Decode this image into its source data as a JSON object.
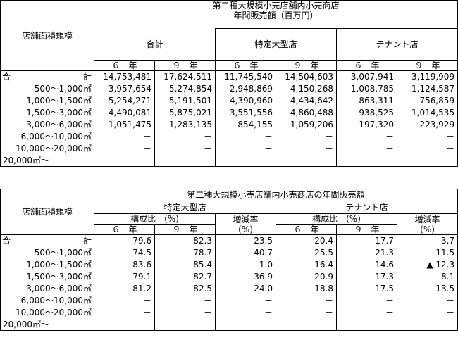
{
  "table1": {
    "stub_header": "店舗面積規模",
    "title": "第二種大規模小売店舗内小売商店",
    "subtitle": "年間販売額（百万円）",
    "groups": [
      "合計",
      "特定大型店",
      "テナント店"
    ],
    "years": [
      "６　年",
      "９　年"
    ],
    "rows": [
      {
        "label": "合計",
        "values": [
          "14,753,481",
          "17,624,511",
          "11,745,540",
          "14,504,603",
          "3,007,941",
          "3,119,909"
        ]
      },
      {
        "label": "500～1,000㎡",
        "values": [
          "3,957,654",
          "5,274,854",
          "2,948,869",
          "4,150,268",
          "1,008,785",
          "1,124,587"
        ]
      },
      {
        "label": "1,000～1,500㎡",
        "values": [
          "5,254,271",
          "5,191,501",
          "4,390,960",
          "4,434,642",
          "863,311",
          "756,859"
        ]
      },
      {
        "label": "1,500～3,000㎡",
        "values": [
          "4,490,081",
          "5,875,021",
          "3,551,556",
          "4,860,488",
          "938,525",
          "1,014,535"
        ]
      },
      {
        "label": "3,000～6,000㎡",
        "values": [
          "1,051,475",
          "1,283,135",
          "854,155",
          "1,059,206",
          "197,320",
          "223,929"
        ]
      },
      {
        "label": "6,000～10,000㎡",
        "values": [
          "－",
          "－",
          "－",
          "－",
          "－",
          "－"
        ]
      },
      {
        "label": "10,000～20,000㎡",
        "values": [
          "－",
          "－",
          "－",
          "－",
          "－",
          "－"
        ]
      },
      {
        "label": "20,000㎡～",
        "values": [
          "－",
          "－",
          "－",
          "－",
          "－",
          "－"
        ]
      }
    ]
  },
  "table2": {
    "stub_header": "店舗面積規模",
    "title": "第二種大規模小売店舗内小売商店の年間販売額",
    "groups": [
      "特定大型店",
      "テナント店"
    ],
    "share": "構成比　(%)",
    "change": "増減率",
    "change_unit": "(%)",
    "years": [
      "６　年",
      "９　年"
    ],
    "rows": [
      {
        "label": "合計",
        "values": [
          "79.6",
          "82.3",
          "23.5",
          "20.4",
          "17.7",
          "3.7"
        ]
      },
      {
        "label": "500～1,000㎡",
        "values": [
          "74.5",
          "78.7",
          "40.7",
          "25.5",
          "21.3",
          "11.5"
        ]
      },
      {
        "label": "1,000～1,500㎡",
        "values": [
          "83.6",
          "85.4",
          "1.0",
          "16.4",
          "14.6",
          "▲ 12.3"
        ]
      },
      {
        "label": "1,500～3,000㎡",
        "values": [
          "79.1",
          "82.7",
          "36.9",
          "20.9",
          "17.3",
          "8.1"
        ]
      },
      {
        "label": "3,000～6,000㎡",
        "values": [
          "81.2",
          "82.5",
          "24.0",
          "18.8",
          "17.5",
          "13.5"
        ]
      },
      {
        "label": "6,000～10,000㎡",
        "values": [
          "－",
          "－",
          "－",
          "－",
          "－",
          "－"
        ]
      },
      {
        "label": "10,000～20,000㎡",
        "values": [
          "－",
          "－",
          "－",
          "－",
          "－",
          "－"
        ]
      },
      {
        "label": "20,000㎡～",
        "values": [
          "－",
          "－",
          "－",
          "－",
          "－",
          "－"
        ]
      }
    ]
  }
}
